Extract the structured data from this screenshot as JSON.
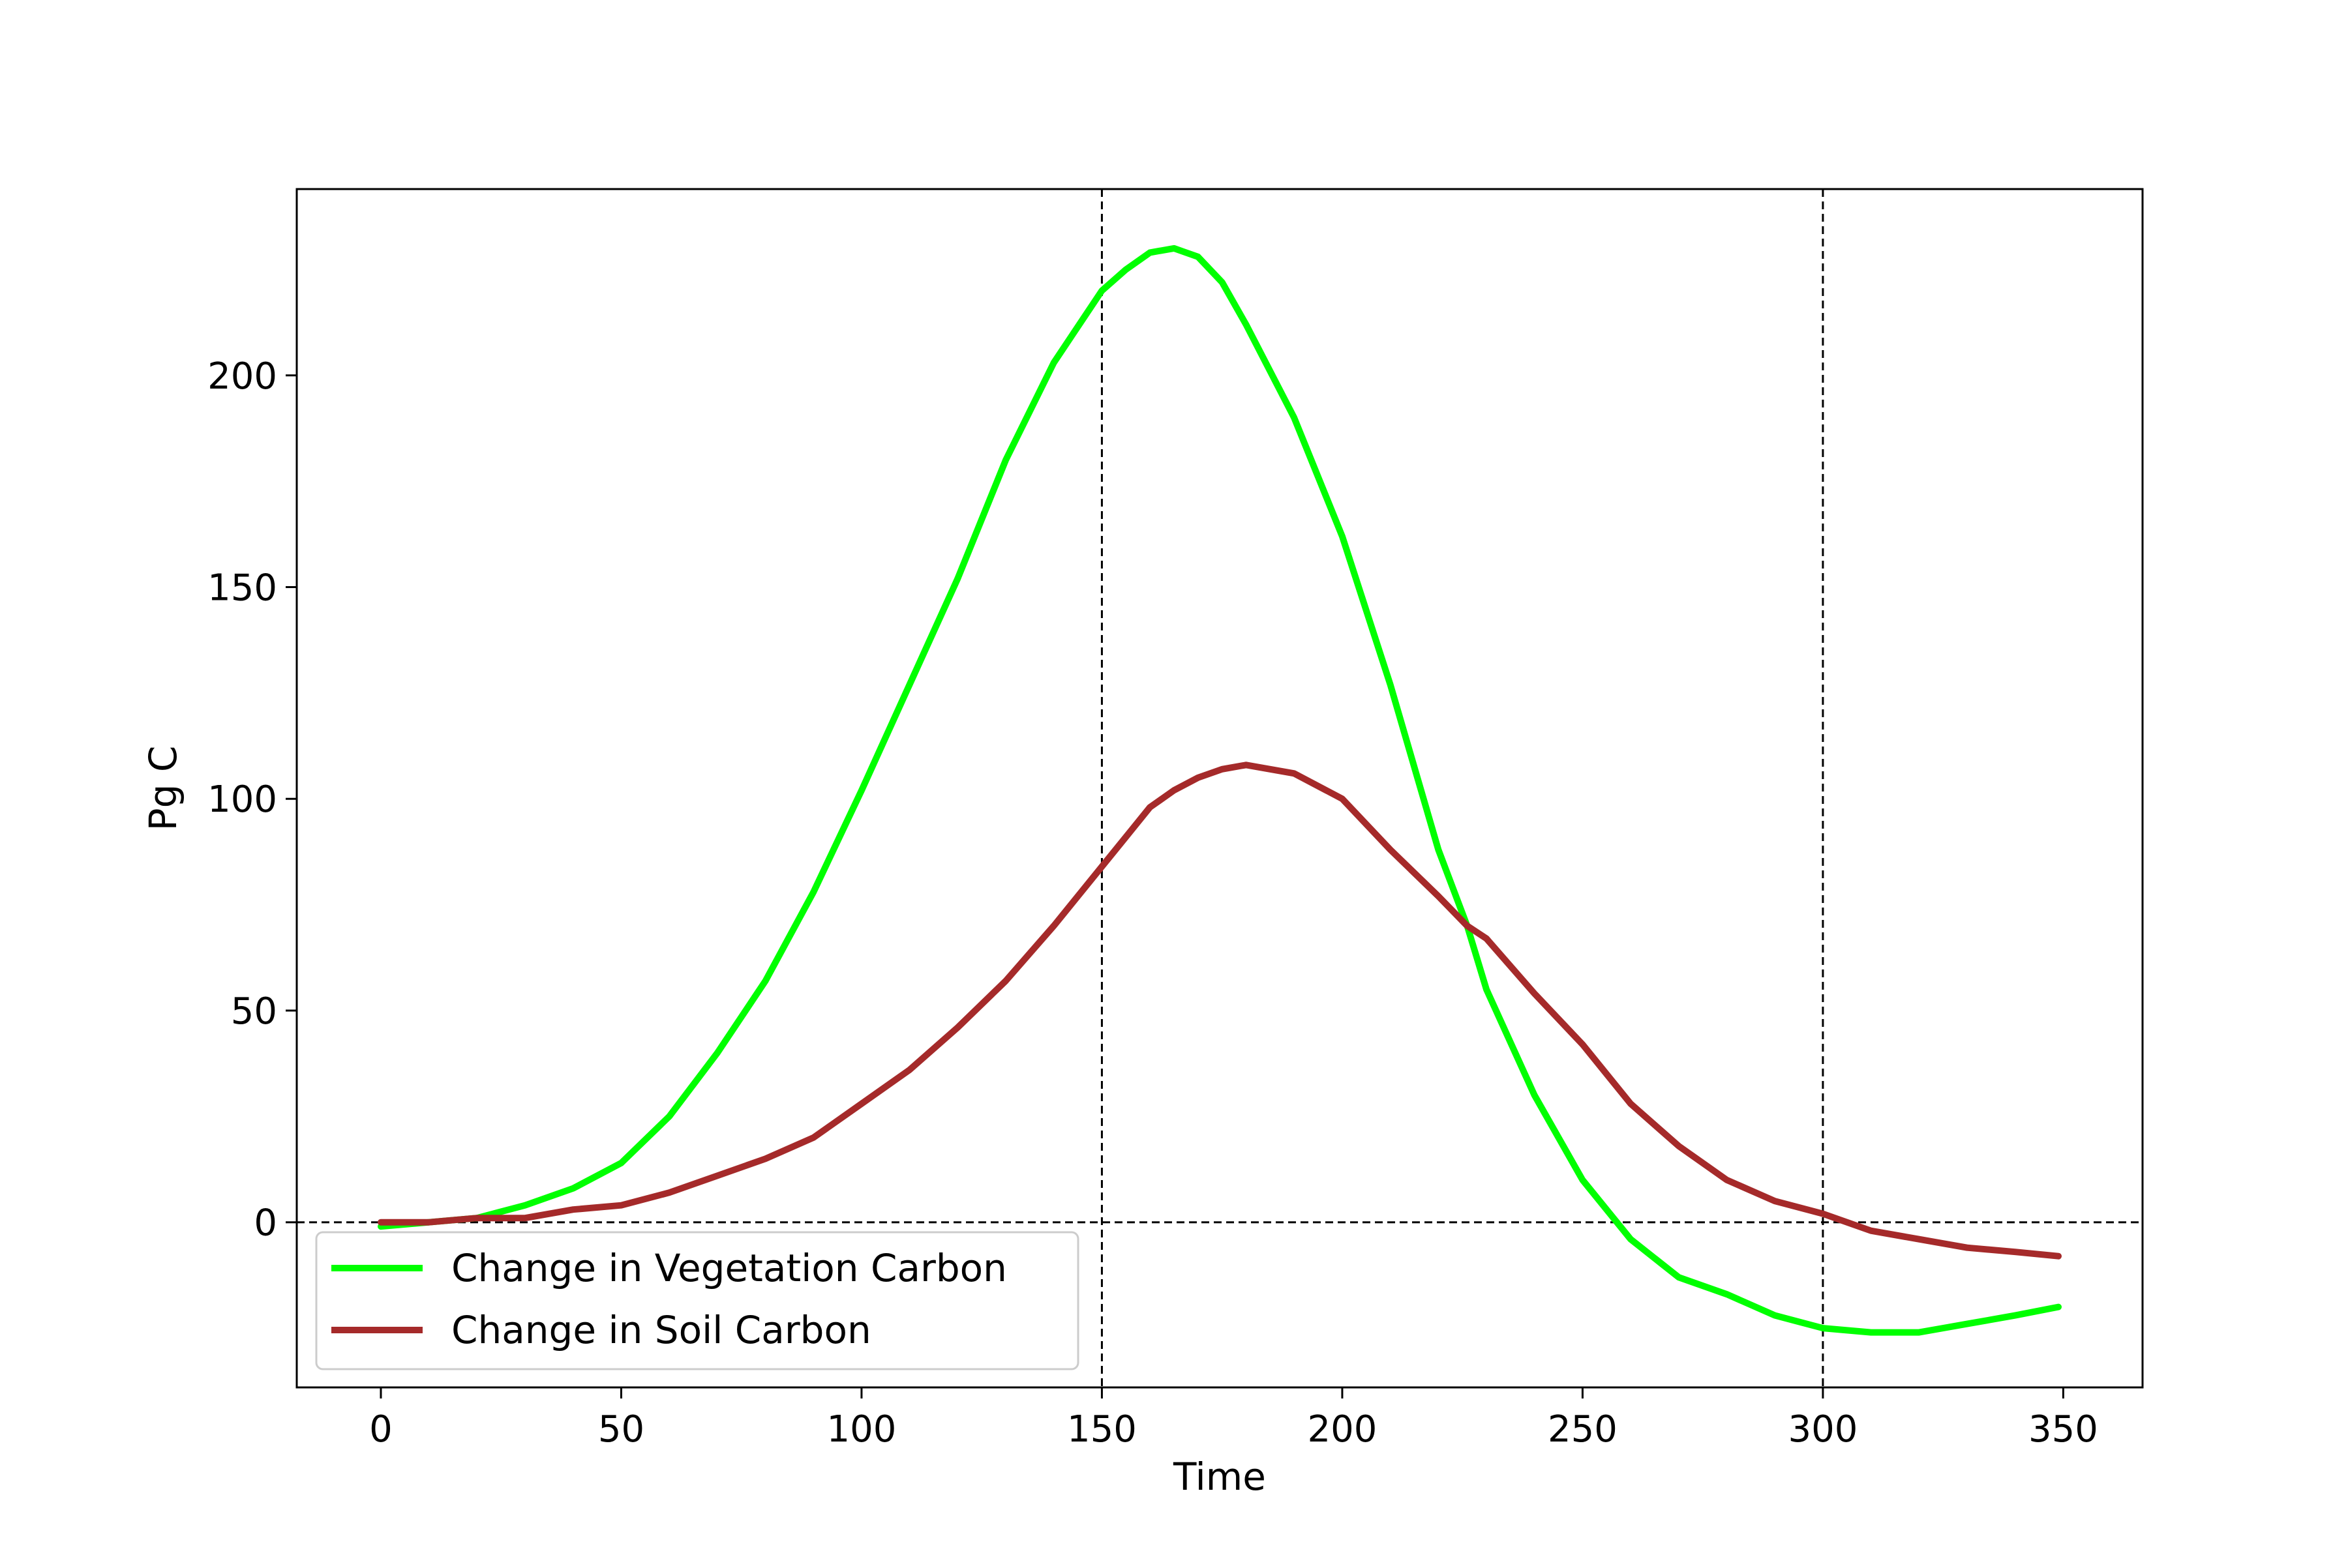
{
  "chart_data": {
    "type": "line",
    "title": "",
    "xlabel": "Time",
    "ylabel": "Pg C",
    "xlim": [
      -17.5,
      366.5
    ],
    "ylim": [
      -39,
      244
    ],
    "xticks": [
      0,
      50,
      100,
      150,
      200,
      250,
      300,
      350
    ],
    "yticks": [
      0,
      50,
      100,
      150,
      200
    ],
    "grid": false,
    "legend_position": "lower-left",
    "reference_lines": [
      {
        "orientation": "horizontal",
        "value": 0,
        "style": "dashed"
      },
      {
        "orientation": "vertical",
        "value": 150,
        "style": "dashed"
      },
      {
        "orientation": "vertical",
        "value": 300,
        "style": "dashed"
      }
    ],
    "x": [
      0,
      10,
      20,
      30,
      40,
      50,
      60,
      70,
      80,
      90,
      100,
      110,
      120,
      130,
      140,
      150,
      155,
      160,
      165,
      170,
      175,
      180,
      190,
      200,
      210,
      220,
      226,
      230,
      240,
      250,
      260,
      270,
      280,
      290,
      300,
      310,
      320,
      330,
      340,
      349
    ],
    "series": [
      {
        "name": "Change in Vegetation Carbon",
        "color": "#00ff00",
        "values": [
          -1,
          0,
          1,
          4,
          8,
          14,
          25,
          40,
          57,
          78,
          102,
          127,
          152,
          180,
          203,
          220,
          225,
          229,
          230,
          228,
          222,
          212,
          190,
          162,
          127,
          88,
          70,
          55,
          30,
          10,
          -4,
          -13,
          -17,
          -22,
          -25,
          -26,
          -26,
          -24,
          -22,
          -20
        ]
      },
      {
        "name": "Change in Soil Carbon",
        "color": "#a52a2a",
        "values": [
          0,
          0,
          1,
          1,
          3,
          4,
          7,
          11,
          15,
          20,
          28,
          36,
          46,
          57,
          70,
          84,
          91,
          98,
          102,
          105,
          107,
          108,
          106,
          100,
          88,
          77,
          70,
          67,
          54,
          42,
          28,
          18,
          10,
          5,
          2,
          -2,
          -4,
          -6,
          -7,
          -8
        ]
      }
    ]
  }
}
